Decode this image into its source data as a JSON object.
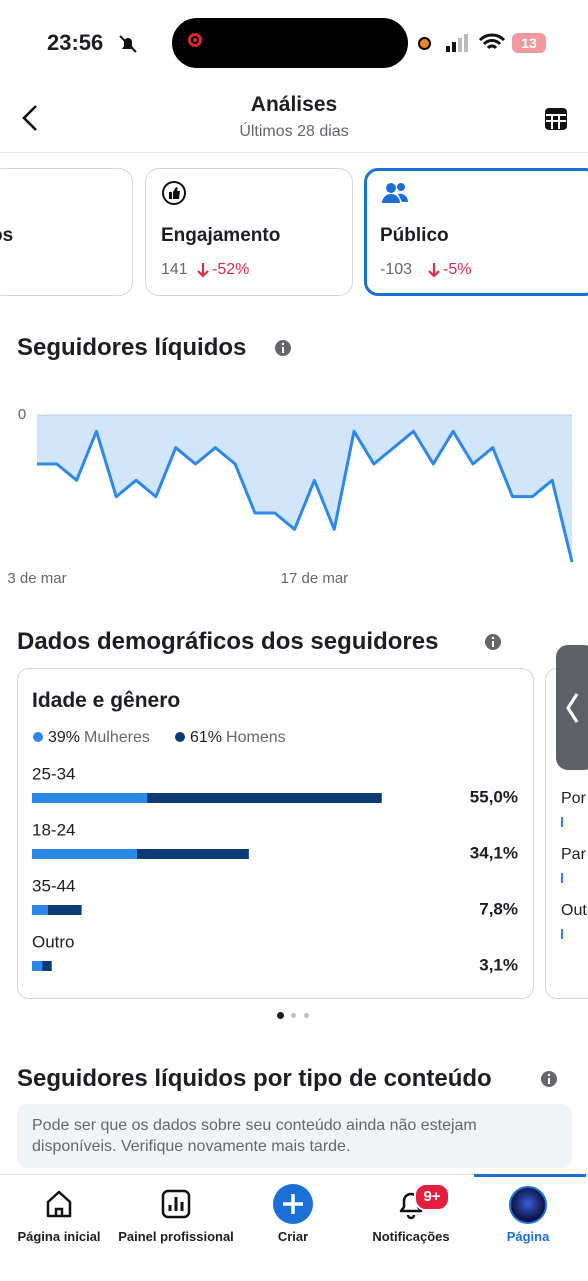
{
  "status_bar": {
    "time": "23:56",
    "battery": "13"
  },
  "header": {
    "title": "Análises",
    "subtitle": "Últimos 28 dias"
  },
  "metric_cards": [
    {
      "title": "os",
      "value": "-"
    },
    {
      "title": "Engajamento",
      "value": "141",
      "change": "-52%"
    },
    {
      "title": "Público",
      "value": "-103",
      "change": "-5%"
    }
  ],
  "net_followers": {
    "title": "Seguidores líquidos",
    "chart_data": {
      "type": "line",
      "categories": [
        "3 de mar",
        null,
        null,
        null,
        null,
        null,
        null,
        null,
        null,
        null,
        null,
        null,
        null,
        null,
        "17 de mar",
        null,
        null,
        null,
        null,
        null,
        null,
        null,
        null,
        null,
        null,
        null,
        null,
        null
      ],
      "values": [
        -3,
        -3,
        -4,
        -1,
        -5,
        -4,
        -5,
        -2,
        -3,
        -2,
        -3,
        -6,
        -6,
        -7,
        -4,
        -7,
        -1,
        -3,
        -2,
        -1,
        -3,
        -1,
        -3,
        -2,
        -5,
        -5,
        -4,
        -9
      ],
      "color": "#2d88e8",
      "area_color": "#d3e5fb",
      "ylim": [
        -9,
        0
      ],
      "yticks": [
        0
      ],
      "grid": true
    }
  },
  "demographics": {
    "title": "Dados demográficos dos seguidores",
    "age_gender": {
      "chart_data": {
        "type": "bar",
        "orientation": "horizontal",
        "stacked": true,
        "title": "Idade e gênero",
        "categories": [
          "25-34",
          "18-24",
          "35-44",
          "Outro"
        ],
        "series": [
          {
            "name": "Mulheres",
            "share": "39%",
            "color": "#2d88e8",
            "values": [
              18.1,
              16.5,
              2.5,
              1.6
            ]
          },
          {
            "name": "Homens",
            "share": "61%",
            "color": "#0c3a73",
            "values": [
              36.9,
              17.6,
              5.3,
              1.5
            ]
          }
        ],
        "total_labels": [
          "55,0%",
          "34,1%",
          "7,8%",
          "3,1%"
        ]
      }
    },
    "next_card_labels": [
      "Por",
      "Par",
      "Out"
    ]
  },
  "content_type": {
    "title": "Seguidores líquidos por tipo de conteúdo",
    "notice": "Pode ser que os dados sobre seu conteúdo ainda não estejam disponíveis. Verifique novamente mais tarde."
  },
  "bottom_nav": [
    {
      "label": "Página inicial"
    },
    {
      "label": "Painel profissional"
    },
    {
      "label": "Criar"
    },
    {
      "label": "Notificações",
      "badge": "9+"
    },
    {
      "label": "Página"
    }
  ]
}
